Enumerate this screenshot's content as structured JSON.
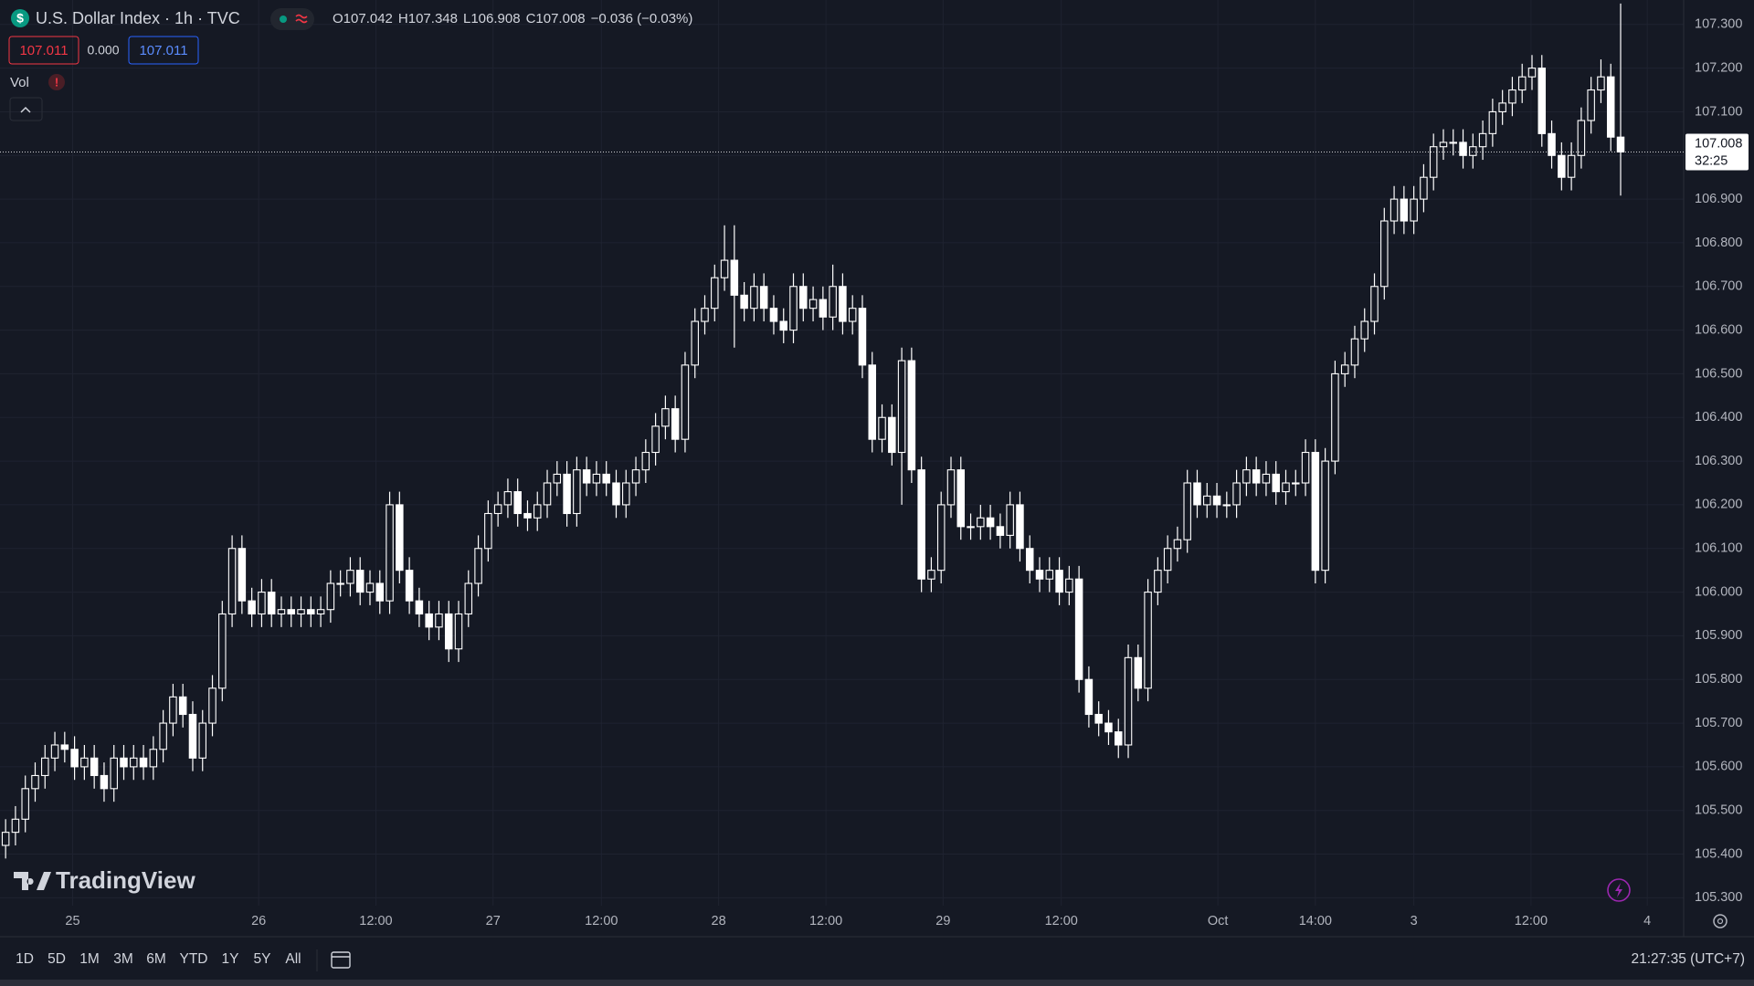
{
  "header": {
    "symbol_icon": "$",
    "title": "U.S. Dollar Index · 1h · TVC",
    "ohlc": [
      {
        "key": "O",
        "value": "107.042"
      },
      {
        "key": "H",
        "value": "107.348"
      },
      {
        "key": "L",
        "value": "106.908"
      },
      {
        "key": "C",
        "value": "107.008"
      }
    ],
    "change": "−0.036 (−0.03%)"
  },
  "trade": {
    "sell": "107.011",
    "spread": "0.000",
    "buy": "107.011"
  },
  "indicator": {
    "name": "Vol",
    "warning": "!"
  },
  "branding": "TradingView",
  "toolbar": {
    "ranges": [
      "1D",
      "5D",
      "1M",
      "3M",
      "6M",
      "YTD",
      "1Y",
      "5Y",
      "All"
    ],
    "clock": "21:27:35 (UTC+7)"
  },
  "chart_data": {
    "type": "candlestick",
    "color": "#ffffff",
    "grid": true,
    "last_price": 107.008,
    "countdown": "32:25",
    "open": [
      105.42,
      105.45,
      105.48,
      105.55,
      105.58,
      105.62,
      105.65,
      105.64,
      105.6,
      105.62,
      105.58,
      105.55,
      105.62,
      105.6,
      105.62,
      105.6,
      105.64,
      105.7,
      105.76,
      105.72,
      105.62,
      105.7,
      105.78,
      105.95,
      106.1,
      105.98,
      105.95,
      106.0,
      105.95,
      105.96,
      105.95,
      105.96,
      105.95,
      105.96,
      106.02,
      106.02,
      106.05,
      106.0,
      106.02,
      105.98,
      106.2,
      106.05,
      105.98,
      105.95,
      105.92,
      105.95,
      105.87,
      105.95,
      106.02,
      106.1,
      106.18,
      106.2,
      106.23,
      106.18,
      106.17,
      106.2,
      106.25,
      106.27,
      106.18,
      106.28,
      106.25,
      106.27,
      106.25,
      106.2,
      106.25,
      106.28,
      106.32,
      106.38,
      106.42,
      106.35,
      106.52,
      106.62,
      106.65,
      106.72,
      106.76,
      106.68,
      106.65,
      106.7,
      106.65,
      106.62,
      106.6,
      106.7,
      106.65,
      106.67,
      106.63,
      106.7,
      106.62,
      106.65,
      106.52,
      106.35,
      106.4,
      106.32,
      106.53,
      106.28,
      106.03,
      106.05,
      106.2,
      106.28,
      106.15,
      106.15,
      106.17,
      106.15,
      106.13,
      106.2,
      106.1,
      106.05,
      106.03,
      106.05,
      106.0,
      106.03,
      105.8,
      105.72,
      105.7,
      105.68,
      105.65,
      105.85,
      105.78,
      106.0,
      106.05,
      106.1,
      106.12,
      106.25,
      106.2,
      106.22,
      106.2,
      106.2,
      106.25,
      106.28,
      106.25,
      106.27,
      106.23,
      106.25,
      106.25,
      106.32,
      106.05,
      106.3,
      106.5,
      106.52,
      106.58,
      106.62,
      106.7,
      106.85,
      106.9,
      106.85,
      106.9,
      106.95,
      107.02,
      107.03,
      107.03,
      107.0,
      107.02,
      107.05,
      107.1,
      107.12,
      107.15,
      107.18,
      107.2,
      107.05,
      107.0,
      106.95,
      107.0,
      107.08,
      107.15,
      107.18,
      107.042
    ],
    "high": [
      105.48,
      105.51,
      105.58,
      105.61,
      105.65,
      105.68,
      105.68,
      105.67,
      105.65,
      105.65,
      105.61,
      105.65,
      105.65,
      105.65,
      105.65,
      105.67,
      105.73,
      105.79,
      105.79,
      105.75,
      105.73,
      105.81,
      105.98,
      106.13,
      106.13,
      106.01,
      106.03,
      106.03,
      105.99,
      105.99,
      105.99,
      105.99,
      105.99,
      106.05,
      106.05,
      106.08,
      106.08,
      106.05,
      106.05,
      106.23,
      106.23,
      106.08,
      106.01,
      105.98,
      105.98,
      105.98,
      105.98,
      106.05,
      106.13,
      106.21,
      106.23,
      106.26,
      106.26,
      106.21,
      106.23,
      106.28,
      106.3,
      106.3,
      106.31,
      106.31,
      106.3,
      106.3,
      106.28,
      106.28,
      106.31,
      106.35,
      106.41,
      106.45,
      106.45,
      106.55,
      106.65,
      106.68,
      106.75,
      106.84,
      106.84,
      106.71,
      106.73,
      106.73,
      106.68,
      106.65,
      106.73,
      106.73,
      106.7,
      106.7,
      106.75,
      106.73,
      106.68,
      106.68,
      106.55,
      106.43,
      106.43,
      106.56,
      106.56,
      106.31,
      106.08,
      106.23,
      106.31,
      106.31,
      106.18,
      106.2,
      106.2,
      106.18,
      106.23,
      106.23,
      106.13,
      106.08,
      106.08,
      106.08,
      106.06,
      106.06,
      105.83,
      105.75,
      105.73,
      105.71,
      105.88,
      105.88,
      106.03,
      106.08,
      106.13,
      106.15,
      106.28,
      106.28,
      106.25,
      106.25,
      106.23,
      106.28,
      106.31,
      106.31,
      106.3,
      106.3,
      106.28,
      106.28,
      106.35,
      106.35,
      106.33,
      106.53,
      106.55,
      106.61,
      106.65,
      106.73,
      106.88,
      106.93,
      106.93,
      106.93,
      106.98,
      107.05,
      107.06,
      107.06,
      107.06,
      107.05,
      107.08,
      107.13,
      107.15,
      107.18,
      107.21,
      107.23,
      107.23,
      107.08,
      107.03,
      107.03,
      107.11,
      107.18,
      107.22,
      107.21,
      107.348
    ],
    "low": [
      105.39,
      105.42,
      105.45,
      105.52,
      105.55,
      105.59,
      105.61,
      105.57,
      105.57,
      105.55,
      105.52,
      105.52,
      105.57,
      105.57,
      105.57,
      105.57,
      105.61,
      105.67,
      105.69,
      105.59,
      105.59,
      105.67,
      105.75,
      105.92,
      105.95,
      105.92,
      105.92,
      105.92,
      105.92,
      105.92,
      105.92,
      105.92,
      105.92,
      105.93,
      105.99,
      105.99,
      105.97,
      105.97,
      105.95,
      105.95,
      106.02,
      105.95,
      105.92,
      105.89,
      105.89,
      105.84,
      105.84,
      105.92,
      105.99,
      106.07,
      106.15,
      106.17,
      106.15,
      106.14,
      106.14,
      106.17,
      106.22,
      106.15,
      106.15,
      106.22,
      106.22,
      106.22,
      106.17,
      106.17,
      106.22,
      106.25,
      106.29,
      106.35,
      106.32,
      106.32,
      106.49,
      106.59,
      106.62,
      106.69,
      106.56,
      106.62,
      106.62,
      106.62,
      106.59,
      106.57,
      106.57,
      106.62,
      106.62,
      106.6,
      106.6,
      106.59,
      106.59,
      106.49,
      106.32,
      106.32,
      106.29,
      106.2,
      106.25,
      106.0,
      106.0,
      106.02,
      106.17,
      106.12,
      106.12,
      106.12,
      106.12,
      106.1,
      106.1,
      106.07,
      106.02,
      106.0,
      106.0,
      105.97,
      105.97,
      105.77,
      105.69,
      105.67,
      105.65,
      105.62,
      105.62,
      105.75,
      105.75,
      105.97,
      106.02,
      106.07,
      106.09,
      106.17,
      106.17,
      106.17,
      106.17,
      106.17,
      106.22,
      106.22,
      106.22,
      106.2,
      106.2,
      106.22,
      106.22,
      106.02,
      106.02,
      106.27,
      106.47,
      106.49,
      106.55,
      106.59,
      106.67,
      106.82,
      106.82,
      106.82,
      106.87,
      106.92,
      106.99,
      107.0,
      106.97,
      106.97,
      106.99,
      107.02,
      107.07,
      107.09,
      107.12,
      107.15,
      107.02,
      106.97,
      106.92,
      106.92,
      106.97,
      107.05,
      107.12,
      107.01,
      106.908
    ],
    "close": [
      105.45,
      105.48,
      105.55,
      105.58,
      105.62,
      105.65,
      105.64,
      105.6,
      105.62,
      105.58,
      105.55,
      105.62,
      105.6,
      105.62,
      105.6,
      105.64,
      105.7,
      105.76,
      105.72,
      105.62,
      105.7,
      105.78,
      105.95,
      106.1,
      105.98,
      105.95,
      106.0,
      105.95,
      105.96,
      105.95,
      105.96,
      105.95,
      105.96,
      106.02,
      106.02,
      106.05,
      106.0,
      106.02,
      105.98,
      106.2,
      106.05,
      105.98,
      105.95,
      105.92,
      105.95,
      105.87,
      105.95,
      106.02,
      106.1,
      106.18,
      106.2,
      106.23,
      106.18,
      106.17,
      106.2,
      106.25,
      106.27,
      106.18,
      106.28,
      106.25,
      106.27,
      106.25,
      106.2,
      106.25,
      106.28,
      106.32,
      106.38,
      106.42,
      106.35,
      106.52,
      106.62,
      106.65,
      106.72,
      106.76,
      106.68,
      106.65,
      106.7,
      106.65,
      106.62,
      106.6,
      106.7,
      106.65,
      106.67,
      106.63,
      106.7,
      106.62,
      106.65,
      106.52,
      106.35,
      106.4,
      106.32,
      106.53,
      106.28,
      106.03,
      106.05,
      106.2,
      106.28,
      106.15,
      106.15,
      106.17,
      106.15,
      106.13,
      106.2,
      106.1,
      106.05,
      106.03,
      106.05,
      106.0,
      106.03,
      105.8,
      105.72,
      105.7,
      105.68,
      105.65,
      105.85,
      105.78,
      106.0,
      106.05,
      106.1,
      106.12,
      106.25,
      106.2,
      106.22,
      106.2,
      106.2,
      106.25,
      106.28,
      106.25,
      106.27,
      106.23,
      106.25,
      106.25,
      106.32,
      106.05,
      106.3,
      106.5,
      106.52,
      106.58,
      106.62,
      106.7,
      106.85,
      106.9,
      106.85,
      106.9,
      106.95,
      107.02,
      107.03,
      107.03,
      107.0,
      107.02,
      107.05,
      107.1,
      107.12,
      107.15,
      107.18,
      107.2,
      107.05,
      107.0,
      106.95,
      107.0,
      107.08,
      107.15,
      107.18,
      107.042,
      107.008
    ],
    "xlim": [
      -0.57,
      170.4
    ],
    "xticks": [
      {
        "value": 6.8,
        "label": "25"
      },
      {
        "value": 25.7,
        "label": "26"
      },
      {
        "value": 37.6,
        "label": "12:00"
      },
      {
        "value": 49.5,
        "label": "27"
      },
      {
        "value": 60.5,
        "label": "12:00"
      },
      {
        "value": 72.4,
        "label": "28"
      },
      {
        "value": 83.3,
        "label": "12:00"
      },
      {
        "value": 95.2,
        "label": "29"
      },
      {
        "value": 107.2,
        "label": "12:00"
      },
      {
        "value": 123.1,
        "label": "Oct"
      },
      {
        "value": 133.0,
        "label": "14:00"
      },
      {
        "value": 143.0,
        "label": "3"
      },
      {
        "value": 154.9,
        "label": "12:00"
      },
      {
        "value": 166.7,
        "label": "4"
      }
    ],
    "ylim": [
      105.282,
      107.356
    ],
    "yticks": [
      {
        "value": 105.3,
        "label": "105.300"
      },
      {
        "value": 105.4,
        "label": "105.400"
      },
      {
        "value": 105.5,
        "label": "105.500"
      },
      {
        "value": 105.6,
        "label": "105.600"
      },
      {
        "value": 105.7,
        "label": "105.700"
      },
      {
        "value": 105.8,
        "label": "105.800"
      },
      {
        "value": 105.9,
        "label": "105.900"
      },
      {
        "value": 106.0,
        "label": "106.000"
      },
      {
        "value": 106.1,
        "label": "106.100"
      },
      {
        "value": 106.2,
        "label": "106.200"
      },
      {
        "value": 106.3,
        "label": "106.300"
      },
      {
        "value": 106.4,
        "label": "106.400"
      },
      {
        "value": 106.5,
        "label": "106.500"
      },
      {
        "value": 106.6,
        "label": "106.600"
      },
      {
        "value": 106.7,
        "label": "106.700"
      },
      {
        "value": 106.8,
        "label": "106.800"
      },
      {
        "value": 106.9,
        "label": "106.900"
      },
      {
        "value": 107.0,
        "label": "107.000"
      },
      {
        "value": 107.1,
        "label": "107.100"
      },
      {
        "value": 107.2,
        "label": "107.200"
      },
      {
        "value": 107.3,
        "label": "107.300"
      }
    ]
  }
}
